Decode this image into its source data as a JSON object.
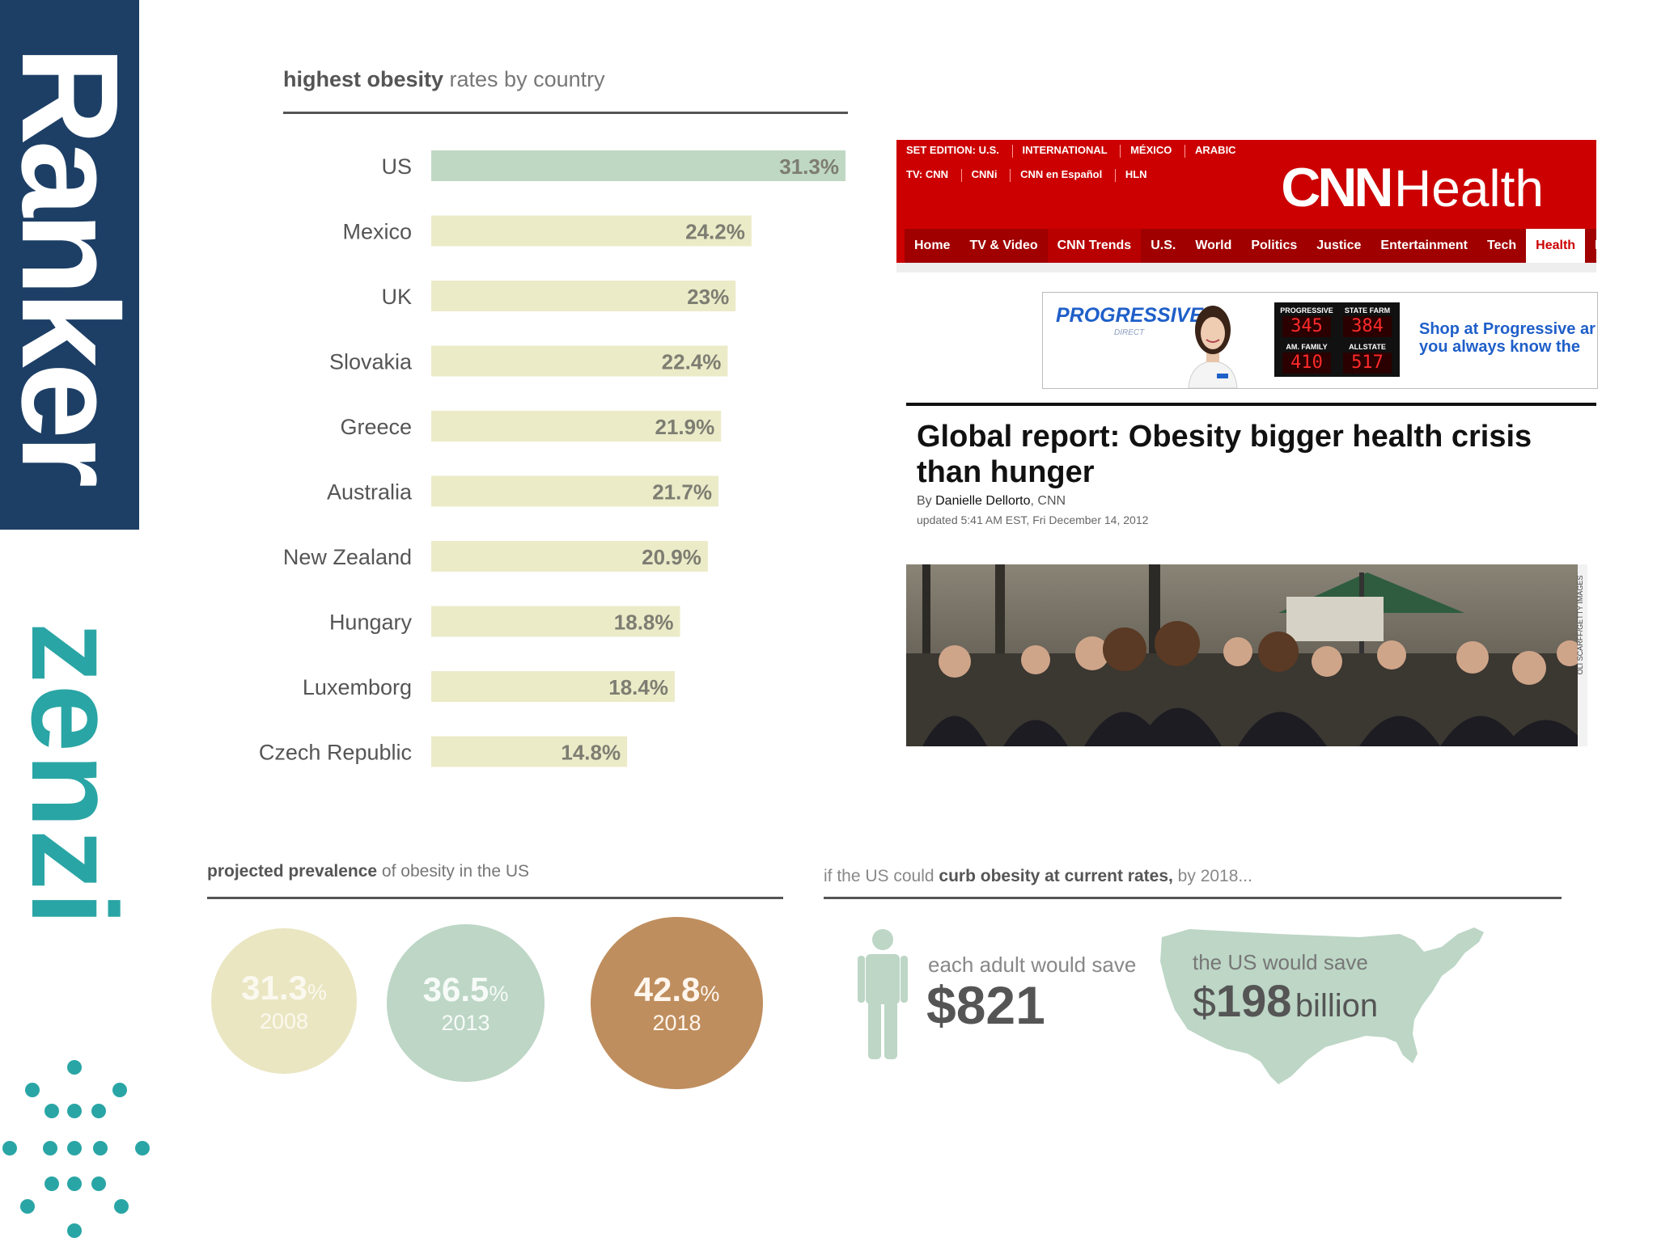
{
  "branding": {
    "ranker": "Ranker",
    "zenzi": "zenzi"
  },
  "chart_data": [
    {
      "type": "bar",
      "orientation": "horizontal",
      "title_bold": "highest obesity",
      "title_rest": " rates by country",
      "categories": [
        "US",
        "Mexico",
        "UK",
        "Slovakia",
        "Greece",
        "Australia",
        "New Zealand",
        "Hungary",
        "Luxemborg",
        "Czech Republic"
      ],
      "values": [
        31.3,
        24.2,
        23,
        22.4,
        21.9,
        21.7,
        20.9,
        18.8,
        18.4,
        14.8
      ],
      "value_labels": [
        "31.3%",
        "24.2%",
        "23%",
        "22.4%",
        "21.9%",
        "21.7%",
        "20.9%",
        "18.8%",
        "18.4%",
        "14.8%"
      ],
      "unit": "%",
      "xlim": [
        0,
        31.3
      ],
      "grid": false,
      "legend": "none",
      "colors": {
        "highlight": "#bfd8c4",
        "default": "#ecebc8",
        "label": "#7d7d72"
      }
    },
    {
      "type": "bubble",
      "title_bold": "projected prevalence",
      "title_rest": " of obesity in the US",
      "categories": [
        "2008",
        "2013",
        "2018"
      ],
      "values": [
        31.3,
        36.5,
        42.8
      ],
      "value_labels": [
        "31.3",
        "36.5",
        "42.8"
      ],
      "unit": "%",
      "colors": [
        "#eae6c2",
        "#bdd6c6",
        "#bf8e5e"
      ]
    }
  ],
  "savings": {
    "title_pre": "if the US could ",
    "title_bold": "curb obesity at current rates,",
    "title_post": " by 2018...",
    "adult_label": "each adult would save",
    "adult_amount": "$821",
    "us_label": "the US would save",
    "us_currency": "$",
    "us_amount": "198",
    "us_unit": "billion",
    "map_color": "#bdd6c6",
    "person_color": "#bdd6c6"
  },
  "cnn": {
    "edition_label": "SET EDITION:",
    "edition_current": "U.S.",
    "editions": [
      "INTERNATIONAL",
      "MÉXICO",
      "ARABIC"
    ],
    "tv_label": "TV:",
    "tv_items": [
      "CNN",
      "CNNi",
      "CNN en Español",
      "HLN"
    ],
    "brand_cnn": "CNN",
    "brand_section": "Health",
    "nav": [
      "Home",
      "TV & Video",
      "CNN Trends",
      "U.S.",
      "World",
      "Politics",
      "Justice",
      "Entertainment",
      "Tech",
      "Health",
      "Livi"
    ],
    "nav_active": "Health",
    "ad": {
      "logo": "PROGRESSIVE",
      "logo_sub": "DIRECT",
      "boards": [
        {
          "label": "PROGRESSIVE",
          "value": "345"
        },
        {
          "label": "STATE FARM",
          "value": "384"
        },
        {
          "label": "AM. FAMILY",
          "value": "410"
        },
        {
          "label": "ALLSTATE",
          "value": "517"
        }
      ],
      "copy_line1": "Shop at Progressive ar",
      "copy_line2": "you always know the"
    },
    "headline": "Global report: Obesity bigger health crisis than hunger",
    "byline_prefix": "By ",
    "byline_author": "Danielle Dellorto",
    "byline_suffix": ", CNN",
    "updated": "updated 5:41 AM EST, Fri December 14, 2012",
    "photo_credit": "OLI SCARFF/GETTY IMAGES",
    "colors": {
      "brand_red": "#cc0000",
      "nav_dark": "#a00000"
    }
  }
}
